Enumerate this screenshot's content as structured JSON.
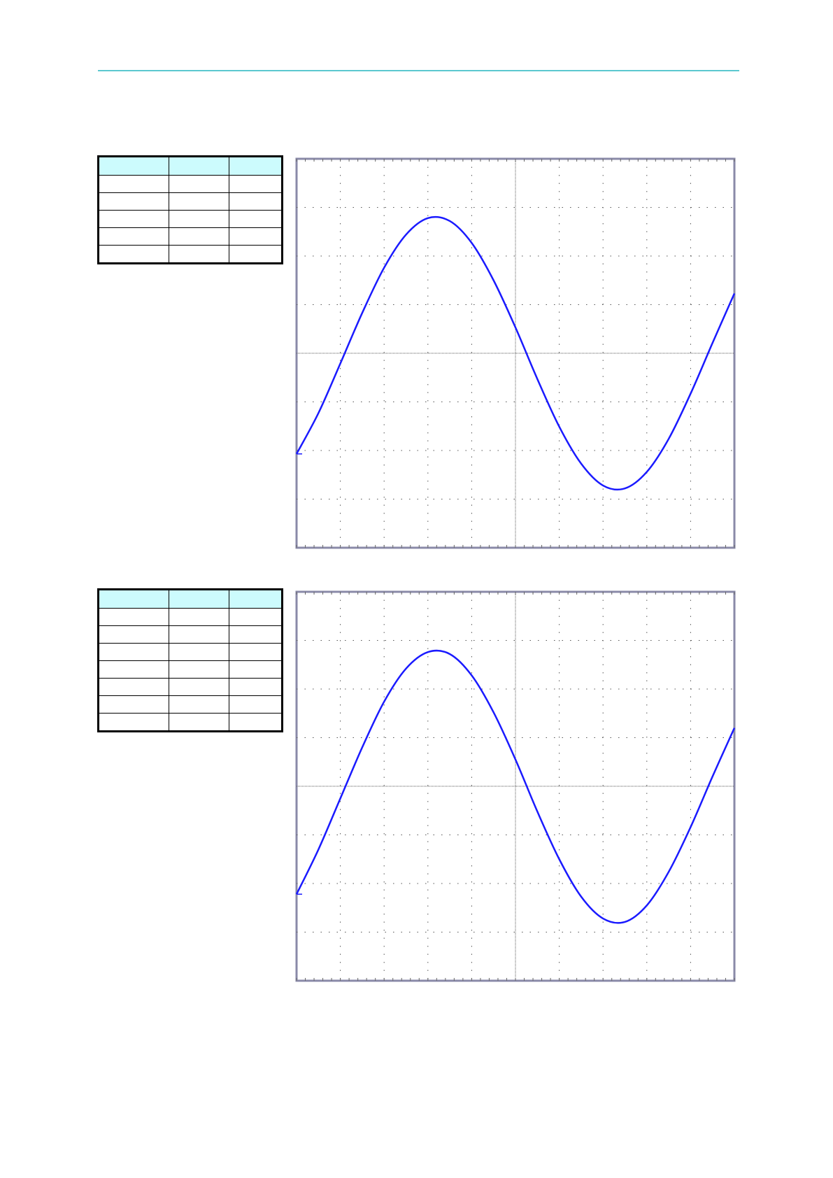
{
  "header": {
    "rule_color": "#5bc8d0"
  },
  "tables": [
    {
      "header_color": "#ccfbfd",
      "columns": 3,
      "body_rows": 5
    },
    {
      "header_color": "#ccfbfd",
      "columns": 3,
      "body_rows": 7
    }
  ],
  "chart_data": [
    {
      "type": "line",
      "grid": true,
      "x_divisions": 10,
      "y_divisions": 8,
      "xlim": [
        0,
        10
      ],
      "ylim": [
        -4,
        4
      ],
      "trace_color": "#1a1aff",
      "x": [
        0,
        0.5,
        1,
        1.5,
        2,
        2.5,
        3,
        3.5,
        4,
        4.5,
        5,
        5.5,
        6,
        6.5,
        7,
        7.5,
        8,
        8.5,
        9,
        9.5,
        10
      ],
      "y": [
        -2.07,
        -1.23,
        -0.21,
        0.83,
        1.76,
        2.44,
        2.78,
        2.72,
        2.27,
        1.5,
        0.53,
        -0.53,
        -1.51,
        -2.27,
        -2.72,
        -2.78,
        -2.44,
        -1.76,
        -0.83,
        0.21,
        1.23
      ]
    },
    {
      "type": "line",
      "grid": true,
      "x_divisions": 10,
      "y_divisions": 8,
      "xlim": [
        0,
        10
      ],
      "ylim": [
        -4,
        4
      ],
      "trace_color": "#1a1aff",
      "x": [
        0,
        0.5,
        1,
        1.5,
        2,
        2.5,
        3,
        3.5,
        4,
        4.5,
        5,
        5.5,
        6,
        6.5,
        7,
        7.5,
        8,
        8.5,
        9,
        9.5,
        10
      ],
      "y": [
        -2.22,
        -1.3,
        -0.25,
        0.8,
        1.74,
        2.42,
        2.76,
        2.72,
        2.28,
        1.52,
        0.55,
        -0.52,
        -1.5,
        -2.27,
        -2.72,
        -2.79,
        -2.45,
        -1.76,
        -0.84,
        0.2,
        1.2
      ]
    }
  ]
}
